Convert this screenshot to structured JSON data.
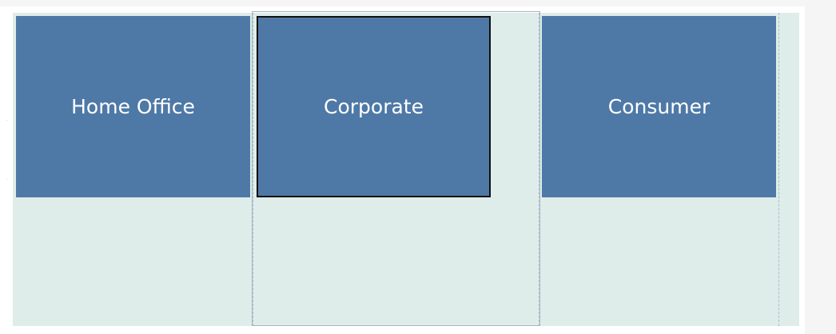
{
  "segments": [
    {
      "label": "Home Office",
      "selected": false
    },
    {
      "label": "Corporate",
      "selected": true
    },
    {
      "label": "Consumer",
      "selected": false
    }
  ],
  "colors": {
    "tile": "#4e79a7",
    "canvas": "#deedea",
    "tile_text": "#ffffff",
    "selection_border": "#111111"
  }
}
